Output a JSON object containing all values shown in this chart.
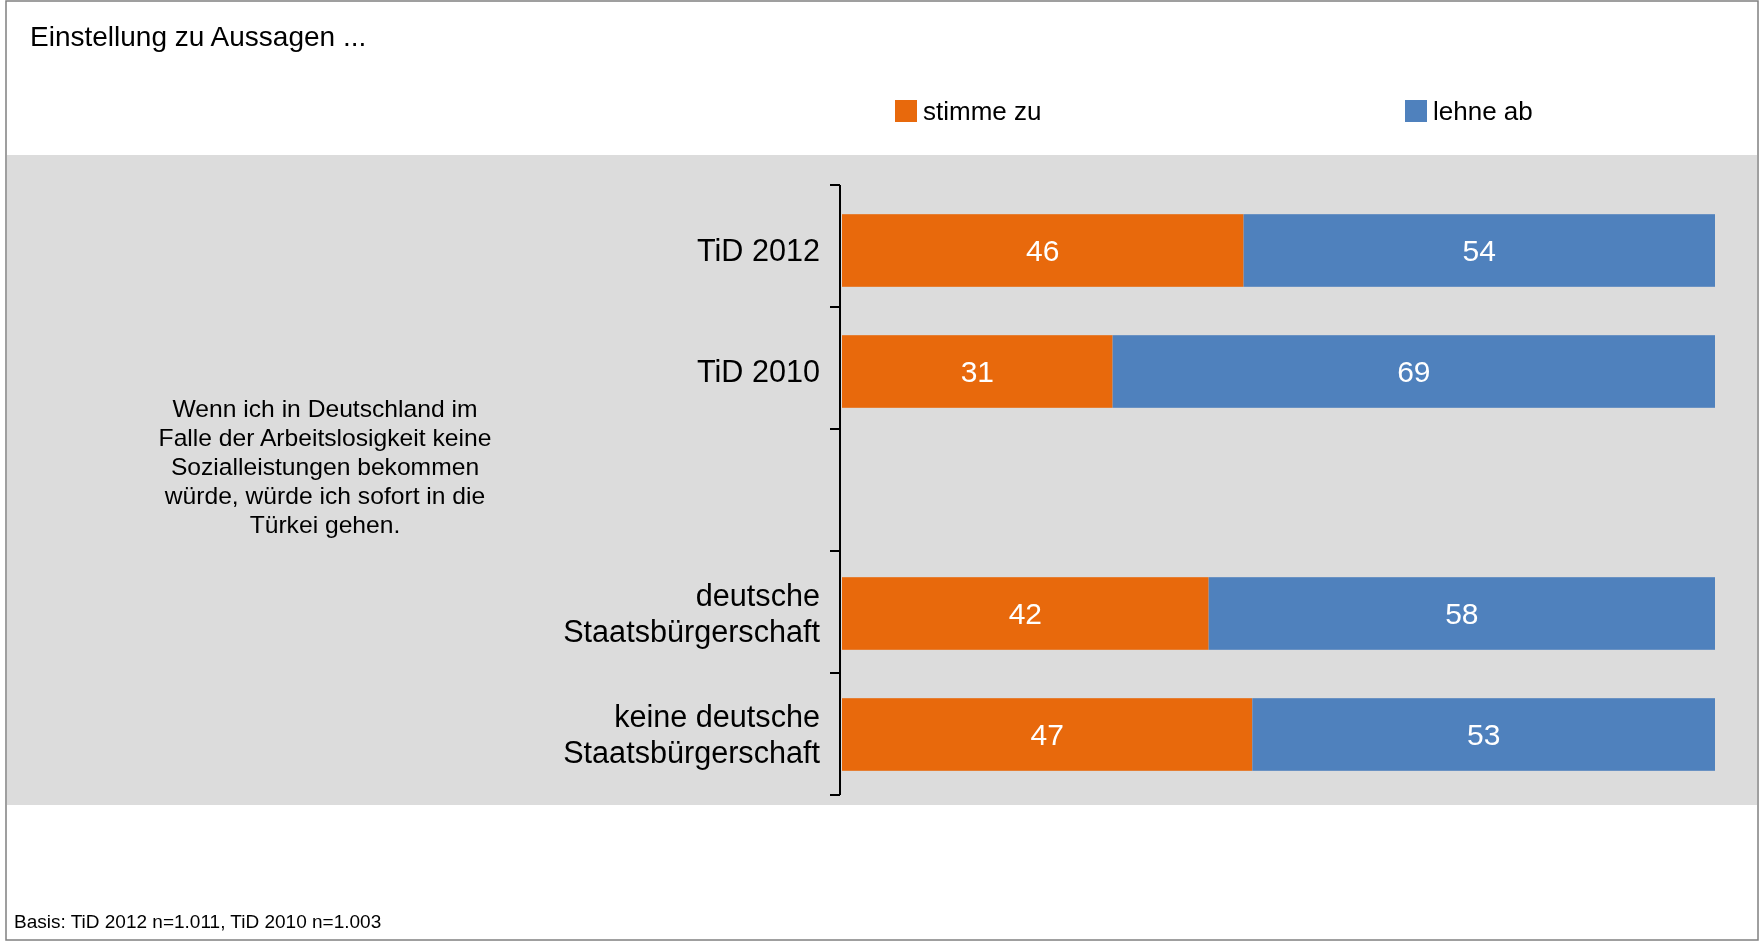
{
  "chart_data": {
    "type": "bar",
    "orientation": "horizontal",
    "stacked": true,
    "title": "Einstellung zu Aussagen ...",
    "categories": [
      "TiD 2012",
      "TiD 2010",
      null,
      "deutsche Staatsbürgerschaft",
      "keine deutsche Staatsbürgerschaft"
    ],
    "series": [
      {
        "name": "stimme zu",
        "color": "#e8690c",
        "values": [
          46,
          31,
          null,
          42,
          47
        ]
      },
      {
        "name": "lehne ab",
        "color": "#4f81bd",
        "values": [
          54,
          69,
          null,
          58,
          53
        ]
      }
    ],
    "data_labels": true,
    "legend": "top",
    "annotations": [
      "Wenn ich in Deutschland im Falle der Arbeitslosigkeit keine Sozialleistungen bekommen würde, würde ich sofort in die Türkei gehen.",
      "Basis: TiD 2012 n=1.011, TiD 2010 n=1.003"
    ]
  }
}
